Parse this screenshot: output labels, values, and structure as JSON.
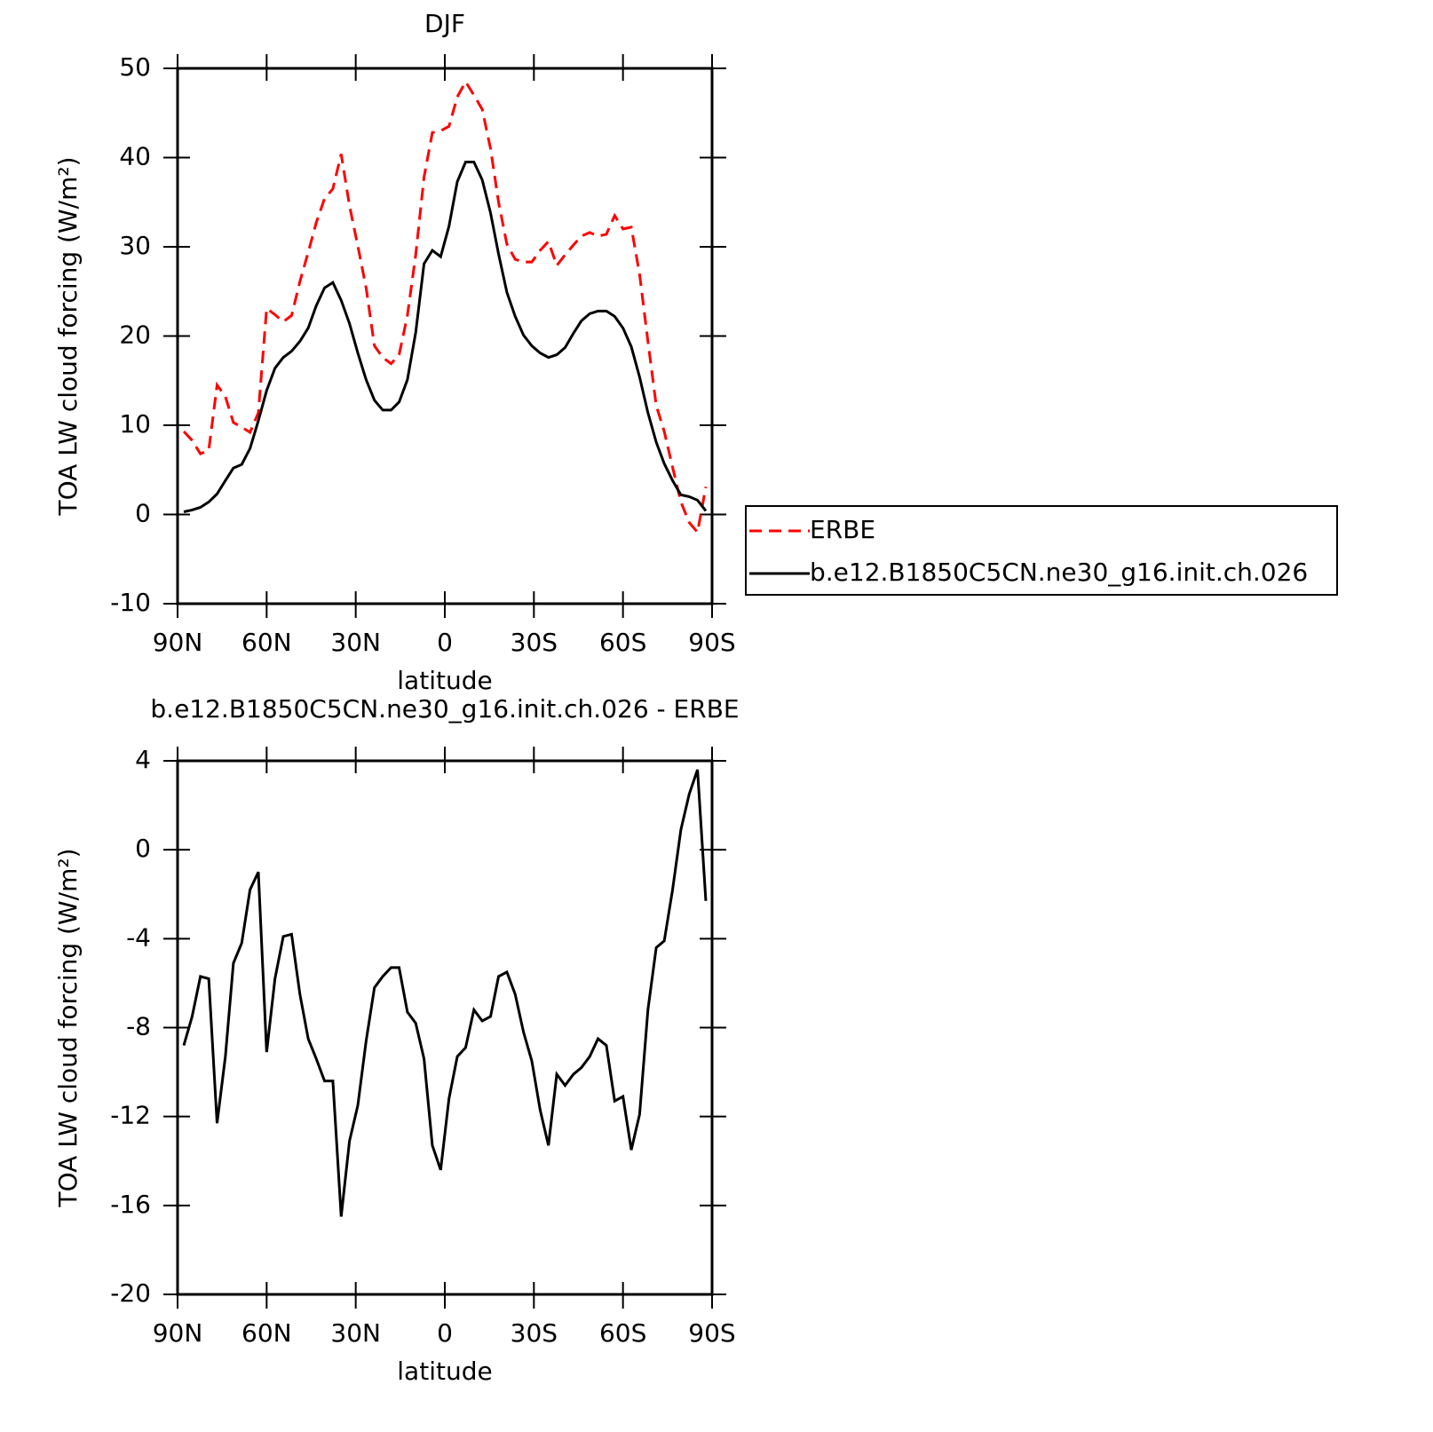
{
  "chart_data": [
    {
      "type": "line",
      "title": "DJF",
      "xlabel": "latitude",
      "ylabel": "TOA LW cloud forcing (W/m²)",
      "x": [
        87.9,
        85.1,
        82.3,
        79.5,
        76.7,
        73.9,
        71.2,
        68.4,
        65.6,
        62.8,
        60.0,
        57.2,
        54.4,
        51.6,
        48.8,
        46.0,
        43.3,
        40.5,
        37.7,
        34.9,
        32.1,
        29.3,
        26.5,
        23.7,
        20.9,
        18.1,
        15.4,
        12.6,
        9.8,
        7.0,
        4.2,
        1.4,
        -1.4,
        -4.2,
        -7.0,
        -9.8,
        -12.6,
        -15.4,
        -18.1,
        -20.9,
        -23.7,
        -26.5,
        -29.3,
        -32.1,
        -34.9,
        -37.7,
        -40.5,
        -43.3,
        -46.0,
        -48.8,
        -51.6,
        -54.4,
        -57.2,
        -60.0,
        -62.8,
        -65.6,
        -68.4,
        -71.2,
        -73.9,
        -76.7,
        -79.5,
        -82.3,
        -85.1,
        -87.9
      ],
      "xlim": [
        90,
        -90
      ],
      "xticks": [
        {
          "value": 90,
          "label": "90N"
        },
        {
          "value": 60,
          "label": "60N"
        },
        {
          "value": 30,
          "label": "30N"
        },
        0,
        {
          "value": -30,
          "label": "30S"
        },
        {
          "value": -60,
          "label": "60S"
        },
        {
          "value": -90,
          "label": "90S"
        }
      ],
      "ylim": [
        -10,
        50
      ],
      "yticks": [
        50,
        40,
        30,
        20,
        10,
        0,
        -10
      ],
      "legend": "right",
      "series": [
        {
          "name": "ERBE",
          "color": "#ff0000",
          "line_style": "dashed",
          "values": [
            9.3,
            8.3,
            6.8,
            7.2,
            14.5,
            13.2,
            10.3,
            9.8,
            9.2,
            11.4,
            23.1,
            22.4,
            21.6,
            22.3,
            26.1,
            29.4,
            32.7,
            35.4,
            36.5,
            40.4,
            34.6,
            30.1,
            25.4,
            18.9,
            17.6,
            16.9,
            17.9,
            22.3,
            29.1,
            37.8,
            42.8,
            43.0,
            43.5,
            46.8,
            48.5,
            47.0,
            45.4,
            41.0,
            35.0,
            30.3,
            28.6,
            28.3,
            28.3,
            29.6,
            30.6,
            27.9,
            29.1,
            30.2,
            31.2,
            31.6,
            31.2,
            31.4,
            33.5,
            32.0,
            32.2,
            26.9,
            19.4,
            12.2,
            9.3,
            5.3,
            1.4,
            -0.9,
            -2.0,
            3.1
          ]
        },
        {
          "name": "b.e12.B1850C5CN.ne30_g16.init.ch.026",
          "color": "#000000",
          "line_style": "solid",
          "values": [
            0.3,
            0.5,
            0.8,
            1.4,
            2.3,
            3.8,
            5.2,
            5.6,
            7.4,
            10.5,
            13.9,
            16.4,
            17.6,
            18.3,
            19.4,
            20.9,
            23.4,
            25.4,
            26.0,
            24.0,
            21.4,
            18.1,
            15.1,
            12.8,
            11.7,
            11.7,
            12.6,
            15.1,
            20.4,
            28.1,
            29.6,
            28.9,
            32.3,
            37.3,
            39.5,
            39.5,
            37.5,
            33.8,
            29.2,
            24.9,
            22.2,
            20.1,
            18.9,
            18.1,
            17.6,
            17.9,
            18.7,
            20.3,
            21.7,
            22.5,
            22.8,
            22.8,
            22.2,
            20.9,
            18.8,
            15.4,
            11.4,
            8.1,
            5.7,
            3.8,
            2.2,
            2.0,
            1.6,
            0.4
          ]
        }
      ]
    },
    {
      "type": "line",
      "title": "b.e12.B1850C5CN.ne30_g16.init.ch.026 - ERBE",
      "xlabel": "latitude",
      "ylabel": "TOA LW cloud forcing (W/m²)",
      "x": [
        87.9,
        85.1,
        82.3,
        79.5,
        76.7,
        73.9,
        71.2,
        68.4,
        65.6,
        62.8,
        60.0,
        57.2,
        54.4,
        51.6,
        48.8,
        46.0,
        43.3,
        40.5,
        37.7,
        34.9,
        32.1,
        29.3,
        26.5,
        23.7,
        20.9,
        18.1,
        15.4,
        12.6,
        9.8,
        7.0,
        4.2,
        1.4,
        -1.4,
        -4.2,
        -7.0,
        -9.8,
        -12.6,
        -15.4,
        -18.1,
        -20.9,
        -23.7,
        -26.5,
        -29.3,
        -32.1,
        -34.9,
        -37.7,
        -40.5,
        -43.3,
        -46.0,
        -48.8,
        -51.6,
        -54.4,
        -57.2,
        -60.0,
        -62.8,
        -65.6,
        -68.4,
        -71.2,
        -73.9,
        -76.7,
        -79.5,
        -82.3,
        -85.1,
        -87.9
      ],
      "xlim": [
        90,
        -90
      ],
      "xticks": [
        {
          "value": 90,
          "label": "90N"
        },
        {
          "value": 60,
          "label": "60N"
        },
        {
          "value": 30,
          "label": "30N"
        },
        0,
        {
          "value": -30,
          "label": "30S"
        },
        {
          "value": -60,
          "label": "60S"
        },
        {
          "value": -90,
          "label": "90S"
        }
      ],
      "ylim": [
        -20,
        4
      ],
      "yticks": [
        4,
        0,
        -4,
        -8,
        -12,
        -16,
        -20
      ],
      "series": [
        {
          "color": "#000000",
          "line_style": "solid",
          "values": [
            -8.8,
            -7.5,
            -5.7,
            -5.8,
            -12.3,
            -9.3,
            -5.1,
            -4.2,
            -1.8,
            -1.0,
            -9.1,
            -5.8,
            -3.9,
            -3.8,
            -6.5,
            -8.5,
            -9.4,
            -10.4,
            -10.4,
            -16.5,
            -13.1,
            -11.5,
            -8.6,
            -6.2,
            -5.7,
            -5.3,
            -5.3,
            -7.3,
            -7.8,
            -9.4,
            -13.3,
            -14.4,
            -11.2,
            -9.3,
            -8.9,
            -7.2,
            -7.7,
            -7.5,
            -5.7,
            -5.5,
            -6.5,
            -8.2,
            -9.5,
            -11.7,
            -13.3,
            -10.1,
            -10.6,
            -10.1,
            -9.8,
            -9.3,
            -8.5,
            -8.8,
            -11.3,
            -11.1,
            -13.5,
            -11.9,
            -7.2,
            -4.4,
            -4.1,
            -1.8,
            0.9,
            2.5,
            3.6,
            -2.3
          ]
        }
      ]
    }
  ]
}
